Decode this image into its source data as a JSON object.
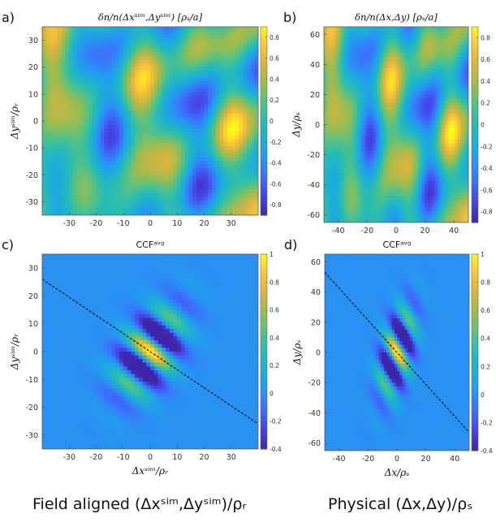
{
  "captions": {
    "left": "Field aligned (Δxˢⁱᵐ,Δyˢⁱᵐ)/ρᵣ",
    "right": "Physical (Δx,Δy)/ρₛ"
  },
  "colors": {
    "colormap": [
      "#3e26a8",
      "#4643e6",
      "#3d6ffb",
      "#2597f1",
      "#1cafd8",
      "#27bcb3",
      "#55c285",
      "#9cbc4f",
      "#d6b540",
      "#fcc43a",
      "#f9fb15"
    ],
    "ccf_background": "#2e8ff0",
    "dashed_line": "#111111"
  },
  "chart_data": [
    {
      "id": "a",
      "panel_label": "a)",
      "type": "heatmap",
      "title": "δn/n(Δxˢⁱᵐ,Δyˢⁱᵐ) [ρₛ/a]",
      "xlabel": "",
      "ylabel": "Δyˢⁱᵐ/ρᵣ",
      "xlim": [
        -40,
        40
      ],
      "ylim": [
        -35,
        35
      ],
      "xticks": [
        "-30",
        "-20",
        "-10",
        "0",
        "10",
        "20",
        "30"
      ],
      "xtick_values": [
        -30,
        -20,
        -10,
        0,
        10,
        20,
        30
      ],
      "yticks": [
        "30",
        "20",
        "10",
        "0",
        "-10",
        "-20",
        "-30"
      ],
      "ytick_values": [
        30,
        20,
        10,
        0,
        -10,
        -20,
        -30
      ],
      "clim": [
        -0.9,
        0.9
      ],
      "cbar_ticks": [
        "0.8",
        "0.6",
        "0.4",
        "0.2",
        "0",
        "-0.2",
        "-0.4",
        "-0.6",
        "-0.8"
      ],
      "cbar_values": [
        0.8,
        0.6,
        0.4,
        0.2,
        0,
        -0.2,
        -0.4,
        -0.6,
        -0.8
      ],
      "field": "turbulence"
    },
    {
      "id": "b",
      "panel_label": "b)",
      "type": "heatmap",
      "title": "δn/n(Δx,Δy) [ρₛ/a]",
      "xlabel": "",
      "ylabel": "Δy/ρₛ",
      "xlim": [
        -50,
        50
      ],
      "ylim": [
        -65,
        65
      ],
      "xticks": [
        "-40",
        "-20",
        "0",
        "20",
        "40"
      ],
      "xtick_values": [
        -40,
        -20,
        0,
        20,
        40
      ],
      "yticks": [
        "60",
        "40",
        "20",
        "0",
        "-20",
        "-40",
        "-60"
      ],
      "ytick_values": [
        60,
        40,
        20,
        0,
        -20,
        -40,
        -60
      ],
      "clim": [
        -0.9,
        0.9
      ],
      "cbar_ticks": [
        "0.8",
        "0.6",
        "0.4",
        "0.2",
        "0",
        "-0.2",
        "-0.4",
        "-0.6",
        "-0.8"
      ],
      "cbar_values": [
        0.8,
        0.6,
        0.4,
        0.2,
        0,
        -0.2,
        -0.4,
        -0.6,
        -0.8
      ],
      "field": "turbulence"
    },
    {
      "id": "c",
      "panel_label": "c)",
      "type": "heatmap",
      "title": "CCFᵃᵛᵍ",
      "xlabel": "Δxˢⁱᵐ/ρᵣ",
      "ylabel": "Δyˢⁱᵐ/ρᵣ",
      "xlim": [
        -40,
        40
      ],
      "ylim": [
        -35,
        35
      ],
      "xticks": [
        "-30",
        "-20",
        "-10",
        "0",
        "10",
        "20",
        "30"
      ],
      "xtick_values": [
        -30,
        -20,
        -10,
        0,
        10,
        20,
        30
      ],
      "yticks": [
        "30",
        "20",
        "10",
        "0",
        "-10",
        "-20",
        "-30"
      ],
      "ytick_values": [
        30,
        20,
        10,
        0,
        -10,
        -20,
        -30
      ],
      "clim": [
        -0.4,
        1
      ],
      "cbar_ticks": [
        "1",
        "0.8",
        "0.6",
        "0.4",
        "0.2",
        "0",
        "-0.2",
        "-0.4"
      ],
      "cbar_values": [
        1,
        0.8,
        0.6,
        0.4,
        0.2,
        0,
        -0.2,
        -0.4
      ],
      "field": "ccf",
      "dashed_line": {
        "x": [
          -40,
          40
        ],
        "y": [
          26,
          -26
        ]
      }
    },
    {
      "id": "d",
      "panel_label": "d)",
      "type": "heatmap",
      "title": "CCFᵃᵛᵍ",
      "xlabel": "Δx/ρₛ",
      "ylabel": "Δy/ρₛ",
      "xlim": [
        -50,
        50
      ],
      "ylim": [
        -65,
        65
      ],
      "xticks": [
        "-40",
        "-20",
        "0",
        "20",
        "40"
      ],
      "xtick_values": [
        -40,
        -20,
        0,
        20,
        40
      ],
      "yticks": [
        "60",
        "40",
        "20",
        "0",
        "-20",
        "-40",
        "-60"
      ],
      "ytick_values": [
        60,
        40,
        20,
        0,
        -20,
        -40,
        -60
      ],
      "clim": [
        -0.4,
        1
      ],
      "cbar_ticks": [
        "1",
        "0.8",
        "0.6",
        "0.4",
        "0.2",
        "0",
        "-0.2",
        "-0.4"
      ],
      "cbar_values": [
        1,
        0.8,
        0.6,
        0.4,
        0.2,
        0,
        -0.2,
        -0.4
      ],
      "field": "ccf",
      "dashed_line": {
        "x": [
          -50,
          50
        ],
        "y": [
          53,
          -53
        ]
      }
    }
  ]
}
